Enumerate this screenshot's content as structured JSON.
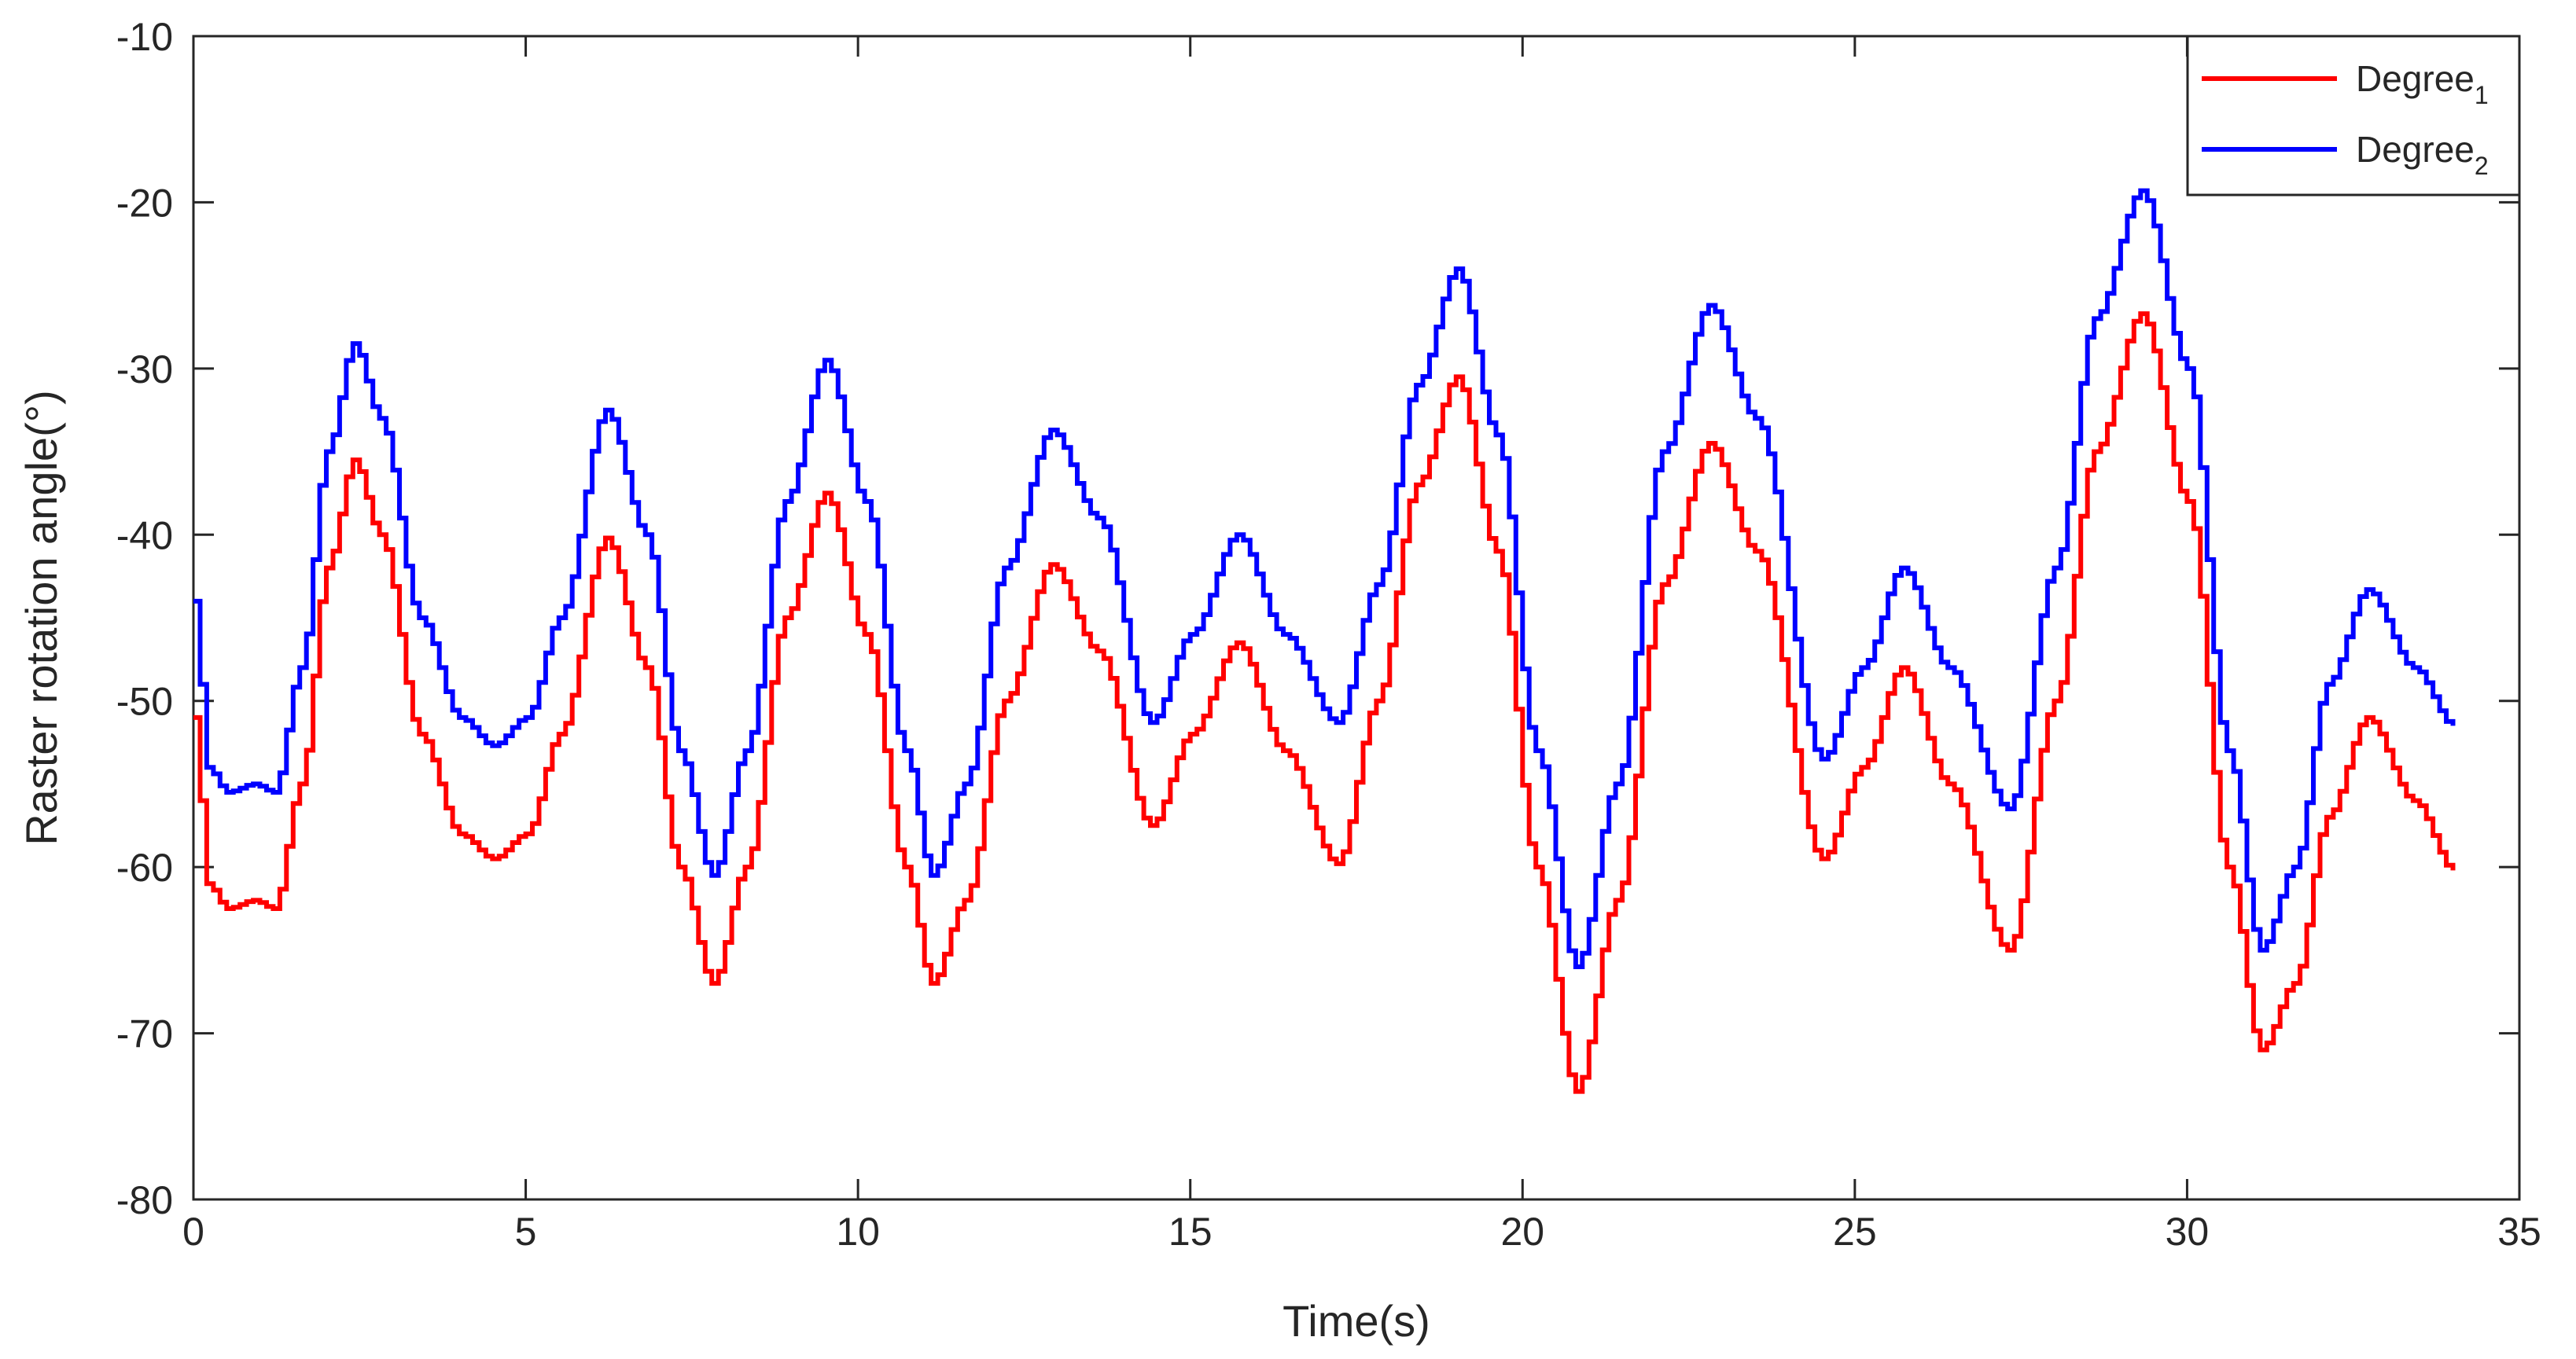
{
  "chart_data": {
    "type": "line",
    "title": "",
    "xlabel": "Time(s)",
    "ylabel": "Raster rotation angle(°)",
    "xlim": [
      0,
      35
    ],
    "ylim": [
      -80,
      -10
    ],
    "xticks": [
      0,
      5,
      10,
      15,
      20,
      25,
      30,
      35
    ],
    "yticks": [
      -10,
      -20,
      -30,
      -40,
      -50,
      -60,
      -70,
      -80
    ],
    "legend_position": "top-right",
    "style": "staircase",
    "step_seconds": 0.1,
    "series": [
      {
        "name": "Degree",
        "subscript": "1",
        "color": "#ff0000",
        "x": [
          0,
          0.2,
          0.5,
          0.9,
          1.2,
          1.6,
          2.0,
          2.4,
          2.8,
          3.4,
          4.0,
          4.5,
          5.0,
          5.5,
          6.2,
          6.8,
          7.3,
          7.8,
          8.3,
          8.9,
          9.5,
          10.1,
          10.7,
          11.1,
          11.6,
          12.2,
          12.9,
          13.6,
          14.4,
          15.0,
          15.7,
          16.4,
          17.2,
          17.8,
          18.4,
          19.0,
          19.6,
          20.2,
          20.8,
          21.4,
          22.1,
          22.8,
          23.5,
          24.5,
          25.1,
          25.7,
          26.4,
          27.3,
          28.0,
          28.6,
          29.3,
          30.0,
          30.6,
          31.1,
          31.6,
          32.1,
          32.7,
          33.4,
          34.0
        ],
        "values": [
          -51,
          -61,
          -62.5,
          -62,
          -62.5,
          -55,
          -42,
          -35.5,
          -40,
          -52,
          -58,
          -59.5,
          -58,
          -52,
          -40.2,
          -48,
          -60,
          -67,
          -60,
          -45,
          -37.5,
          -46,
          -60,
          -67,
          -62,
          -50,
          -41.8,
          -47,
          -57.5,
          -52,
          -46.5,
          -53,
          -59.8,
          -50,
          -37,
          -30.5,
          -41,
          -60,
          -73.5,
          -62,
          -43,
          -34.5,
          -41,
          -59.5,
          -54,
          -48,
          -55,
          -65,
          -50,
          -35,
          -26.7,
          -38,
          -60,
          -71,
          -67,
          -57,
          -51,
          -56,
          -60.2
        ]
      },
      {
        "name": "Degree",
        "subscript": "2",
        "color": "#0000ff",
        "x": [
          0,
          0.2,
          0.5,
          0.9,
          1.2,
          1.6,
          2.0,
          2.4,
          2.8,
          3.4,
          4.0,
          4.5,
          5.0,
          5.5,
          6.2,
          6.8,
          7.3,
          7.8,
          8.3,
          8.9,
          9.5,
          10.1,
          10.7,
          11.1,
          11.6,
          12.2,
          12.9,
          13.6,
          14.4,
          15.0,
          15.7,
          16.4,
          17.2,
          17.8,
          18.4,
          19.0,
          19.6,
          20.2,
          20.8,
          21.4,
          22.1,
          22.8,
          23.5,
          24.5,
          25.1,
          25.7,
          26.4,
          27.3,
          28.0,
          28.6,
          29.3,
          30.0,
          30.6,
          31.1,
          31.6,
          32.1,
          32.7,
          33.4,
          34.0
        ],
        "values": [
          -44,
          -54,
          -55.5,
          -55,
          -55.5,
          -48,
          -35,
          -28.5,
          -33,
          -45,
          -51,
          -52.7,
          -51,
          -45,
          -32.5,
          -40,
          -53,
          -60.5,
          -53,
          -38,
          -29.5,
          -38,
          -53,
          -60.5,
          -55,
          -42,
          -33.7,
          -39,
          -51.3,
          -46,
          -40,
          -46,
          -51.3,
          -43,
          -31,
          -24,
          -34,
          -53,
          -66,
          -55,
          -35,
          -26.2,
          -33,
          -53.5,
          -48,
          -42,
          -48,
          -56.5,
          -42,
          -27,
          -19.3,
          -30,
          -53,
          -65,
          -60,
          -49,
          -43.3,
          -48,
          -51.5
        ]
      }
    ]
  }
}
